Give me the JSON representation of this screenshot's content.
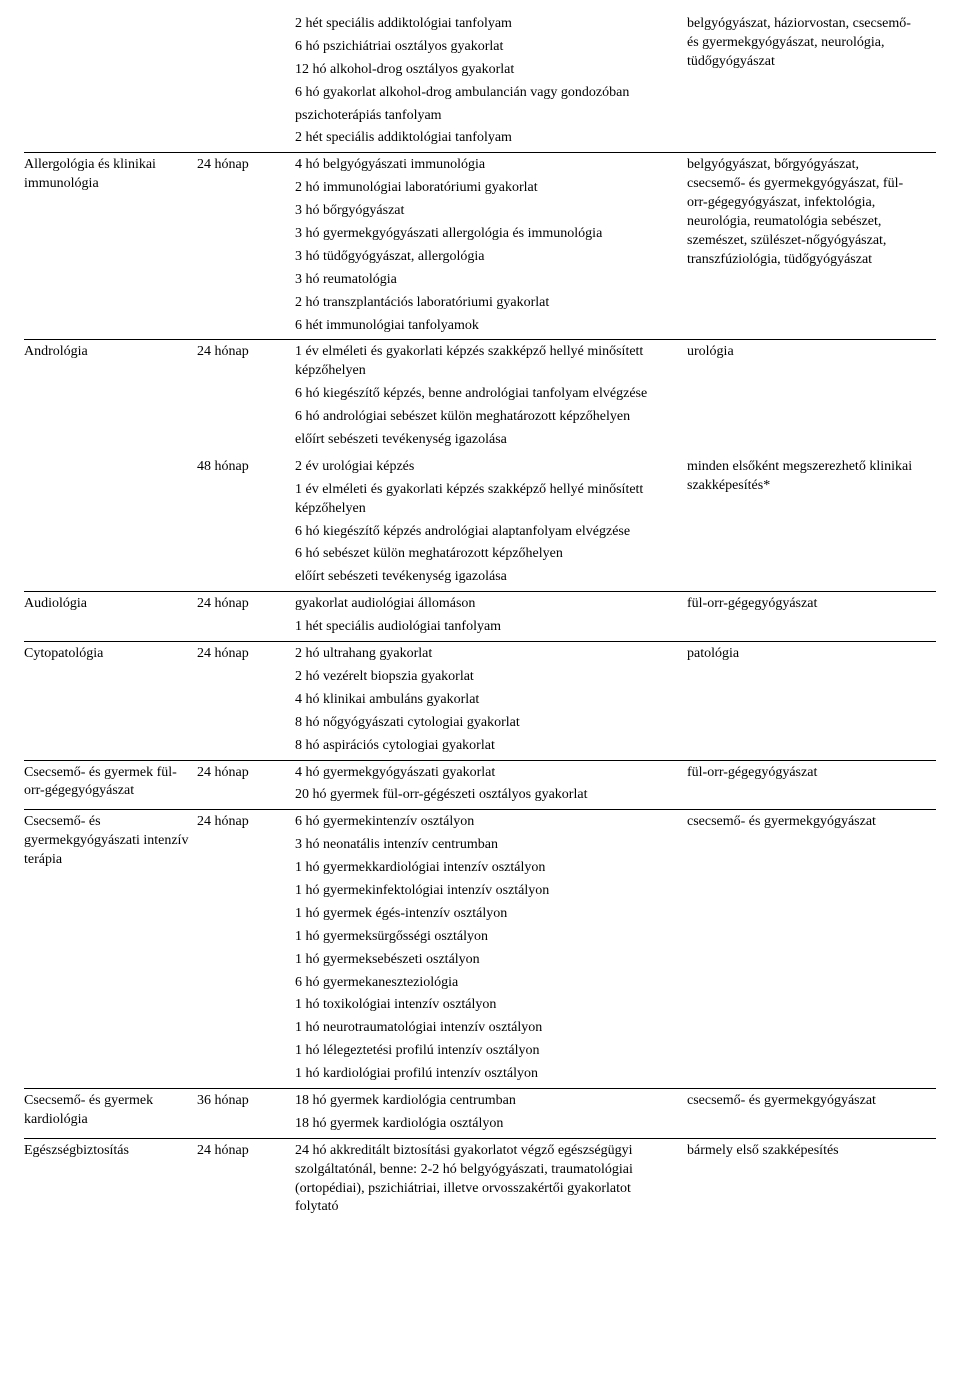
{
  "rows": [
    {
      "name": "",
      "subrows": [
        {
          "duration": "",
          "desc": [
            "2 hét speciális addiktológiai tanfolyam",
            "6 hó pszichiátriai osztályos gyakorlat",
            "12 hó alkohol-drog osztályos gyakorlat",
            "6 hó gyakorlat alkohol-drog ambulancián vagy gondozóban",
            "pszichoterápiás tanfolyam",
            "2 hét speciális addiktológiai tanfolyam"
          ],
          "prereq": "belgyógyászat, háziorvostan, csecsemő- és gyermekgyógyászat, neurológia, tüdőgyógyászat"
        }
      ]
    },
    {
      "name": "Allergológia és klinikai immunológia",
      "subrows": [
        {
          "duration": "24 hónap",
          "desc": [
            "4 hó belgyógyászati immunológia",
            "2 hó immunológiai laboratóriumi gyakorlat",
            "3 hó bőrgyógyászat",
            "3 hó gyermekgyógyászati allergológia és immunológia",
            "3 hó tüdőgyógyászat, allergológia",
            "3 hó reumatológia",
            "2 hó transzplantációs laboratóriumi gyakorlat",
            "6 hét immunológiai tanfolyamok"
          ],
          "prereq": "belgyógyászat, bőrgyógyászat, csecsemő- és gyermekgyógyászat, fül-orr-gégegyógyászat, infektológia, neurológia, reumatológia sebészet, szemészet, szülészet-nőgyógyászat, transzfúziológia, tüdőgyógyászat"
        }
      ]
    },
    {
      "name": "Andrológia",
      "subrows": [
        {
          "duration": "24 hónap",
          "desc": [
            "1 év elméleti és gyakorlati képzés szakképző hellyé minősített képzőhelyen",
            "6 hó kiegészítő képzés, benne andrológiai tanfolyam elvégzése",
            "6 hó andrológiai sebészet külön meghatározott képzőhelyen",
            "előírt sebészeti tevékenység igazolása"
          ],
          "prereq": "urológia"
        },
        {
          "duration": "48 hónap",
          "desc": [
            "2 év urológiai képzés",
            "1 év elméleti és gyakorlati képzés szakképző hellyé minősített képzőhelyen",
            "6 hó kiegészítő képzés andrológiai alaptanfolyam elvégzése",
            "6 hó sebészet külön meghatározott képzőhelyen",
            "előírt sebészeti tevékenység igazolása"
          ],
          "prereq": "minden elsőként megszerezhető klinikai szakképesítés*"
        }
      ]
    },
    {
      "name": "Audiológia",
      "subrows": [
        {
          "duration": "24 hónap",
          "desc": [
            "gyakorlat audiológiai állomáson",
            "1 hét speciális audiológiai tanfolyam"
          ],
          "prereq": "fül-orr-gégegyógyászat"
        }
      ]
    },
    {
      "name": "Cytopatológia",
      "subrows": [
        {
          "duration": "24 hónap",
          "desc": [
            "2 hó ultrahang gyakorlat",
            "2 hó vezérelt biopszia gyakorlat",
            "4 hó klinikai ambuláns gyakorlat",
            "8 hó nőgyógyászati cytologiai gyakorlat",
            "8 hó aspirációs cytologiai gyakorlat"
          ],
          "prereq": "patológia"
        }
      ]
    },
    {
      "name": "Csecsemő- és gyermek fül-orr-gégegyógyászat",
      "subrows": [
        {
          "duration": "24 hónap",
          "desc": [
            "4 hó gyermekgyógyászati gyakorlat",
            "20 hó gyermek fül-orr-gégészeti osztályos gyakorlat"
          ],
          "prereq": "fül-orr-gégegyógyászat"
        }
      ]
    },
    {
      "name": "Csecsemő- és gyermekgyógyászati intenzív terápia",
      "subrows": [
        {
          "duration": "24 hónap",
          "desc": [
            "6 hó gyermekintenzív osztályon",
            "3 hó neonatális intenzív centrumban",
            "1 hó gyermekkardiológiai intenzív osztályon",
            "1 hó gyermekinfektológiai intenzív osztályon",
            "1 hó gyermek égés-intenzív osztályon",
            "1 hó gyermeksürgősségi osztályon",
            "1 hó gyermeksebészeti osztályon",
            "6 hó gyermekaneszteziológia",
            "1 hó toxikológiai intenzív osztályon",
            "1 hó neurotraumatológiai intenzív osztályon",
            "1 hó lélegeztetési profilú intenzív osztályon",
            "1 hó kardiológiai profilú intenzív osztályon"
          ],
          "prereq": "csecsemő- és gyermekgyógyászat"
        }
      ]
    },
    {
      "name": "Csecsemő- és gyermek kardiológia",
      "subrows": [
        {
          "duration": "36 hónap",
          "desc": [
            "18 hó gyermek kardiológia centrumban",
            "18 hó gyermek kardiológia osztályon"
          ],
          "prereq": "csecsemő- és gyermekgyógyászat"
        }
      ]
    },
    {
      "name": "Egészségbiztosítás",
      "subrows": [
        {
          "duration": "24 hónap",
          "desc": [
            "24 hó akkreditált biztosítási gyakorlatot végző egészségügyi szolgáltatónál, benne: 2-2 hó belgyógyászati, traumatológiai (ortopédiai), pszichiátriai, illetve orvosszakértői gyakorlatot folytató"
          ],
          "prereq": "bármely első szakképesítés"
        }
      ]
    }
  ]
}
